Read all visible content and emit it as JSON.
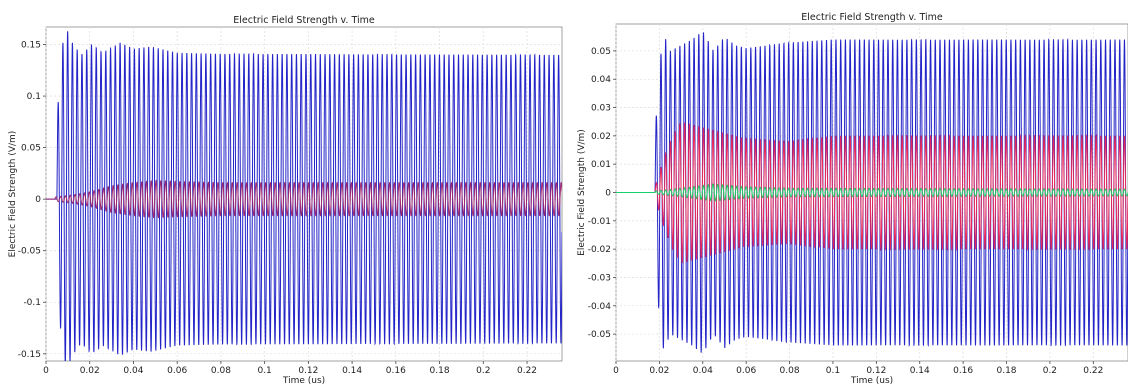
{
  "chart_data": [
    {
      "type": "line",
      "title": "Electric Field Strength v. Time",
      "xlabel": "Time (us)",
      "ylabel": "Electric Field Strength (V/m)",
      "xlim": [
        0,
        0.236
      ],
      "ylim": [
        -0.157,
        0.167
      ],
      "x_ticks": [
        0,
        0.02,
        0.04,
        0.06,
        0.08,
        0.1,
        0.12,
        0.14,
        0.16,
        0.18,
        0.2,
        0.22
      ],
      "x_tick_labels": [
        "0",
        "0.02",
        "0.04",
        "0.06",
        "0.08",
        "0.1",
        "0.12",
        "0.14",
        "0.16",
        "0.18",
        "0.2",
        "0.22"
      ],
      "y_ticks": [
        -0.15,
        -0.1,
        -0.05,
        0,
        0.05,
        0.1,
        0.15
      ],
      "y_tick_labels": [
        "-0.15",
        "-0.1",
        "-0.05",
        "0",
        "0.05",
        "0.1",
        "0.15"
      ],
      "grid": true,
      "legend": "none",
      "series": [
        {
          "color": "#2424c8",
          "onset": 0.005,
          "oscillation_period": 0.00218,
          "envelope": [
            [
              0.005,
              0.078
            ],
            [
              0.0075,
              0.15
            ],
            [
              0.0095,
              0.165
            ],
            [
              0.012,
              0.152
            ],
            [
              0.016,
              0.14
            ],
            [
              0.021,
              0.15
            ],
            [
              0.026,
              0.142
            ],
            [
              0.034,
              0.152
            ],
            [
              0.04,
              0.146
            ],
            [
              0.048,
              0.148
            ],
            [
              0.06,
              0.142
            ],
            [
              0.08,
              0.141
            ],
            [
              0.236,
              0.14
            ]
          ]
        },
        {
          "color": "#a0286e",
          "onset": 0.004,
          "oscillation_period": 0.00218,
          "envelope": [
            [
              0.004,
              0.002
            ],
            [
              0.012,
              0.004
            ],
            [
              0.02,
              0.007
            ],
            [
              0.03,
              0.013
            ],
            [
              0.04,
              0.016
            ],
            [
              0.05,
              0.018
            ],
            [
              0.06,
              0.017
            ],
            [
              0.08,
              0.016
            ],
            [
              0.236,
              0.016
            ]
          ]
        }
      ]
    },
    {
      "type": "line",
      "title": "Electric Field Strength v. Time",
      "xlabel": "Time (us)",
      "ylabel": "Electric Field Strength (V/m)",
      "xlim": [
        0,
        0.236
      ],
      "ylim": [
        -0.0595,
        0.0595
      ],
      "x_ticks": [
        0,
        0.02,
        0.04,
        0.06,
        0.08,
        0.1,
        0.12,
        0.14,
        0.16,
        0.18,
        0.2,
        0.22
      ],
      "x_tick_labels": [
        "0",
        "0.02",
        "0.04",
        "0.06",
        "0.08",
        "0.1",
        "0.12",
        "0.14",
        "0.16",
        "0.18",
        "0.2",
        "0.22"
      ],
      "y_ticks": [
        -0.05,
        -0.04,
        -0.03,
        -0.02,
        -0.01,
        0,
        0.01,
        0.02,
        0.03,
        0.04,
        0.05
      ],
      "y_tick_labels": [
        "-0.05",
        "-0.04",
        "-0.03",
        "-0.02",
        "-0.01",
        "0",
        "0.01",
        "0.02",
        "0.03",
        "0.04",
        "0.05"
      ],
      "grid": true,
      "legend": "none",
      "series": [
        {
          "color": "#2424c8",
          "onset": 0.018,
          "oscillation_period": 0.00218,
          "envelope": [
            [
              0.018,
              0.02
            ],
            [
              0.02,
              0.045
            ],
            [
              0.022,
              0.056
            ],
            [
              0.025,
              0.05
            ],
            [
              0.03,
              0.052
            ],
            [
              0.035,
              0.054
            ],
            [
              0.04,
              0.057
            ],
            [
              0.045,
              0.05
            ],
            [
              0.05,
              0.055
            ],
            [
              0.055,
              0.052
            ],
            [
              0.06,
              0.051
            ],
            [
              0.07,
              0.052
            ],
            [
              0.08,
              0.053
            ],
            [
              0.1,
              0.054
            ],
            [
              0.236,
              0.054
            ]
          ]
        },
        {
          "color": "#e8285a",
          "onset": 0.018,
          "oscillation_period": 0.00218,
          "envelope": [
            [
              0.018,
              0.002
            ],
            [
              0.022,
              0.012
            ],
            [
              0.026,
              0.02
            ],
            [
              0.03,
              0.025
            ],
            [
              0.035,
              0.024
            ],
            [
              0.045,
              0.022
            ],
            [
              0.06,
              0.019
            ],
            [
              0.08,
              0.018
            ],
            [
              0.1,
              0.02
            ],
            [
              0.236,
              0.02
            ]
          ]
        },
        {
          "color": "#18d06a",
          "onset": 0.018,
          "oscillation_period": 0.00218,
          "envelope": [
            [
              0.018,
              0.0005
            ],
            [
              0.03,
              0.0015
            ],
            [
              0.045,
              0.003
            ],
            [
              0.06,
              0.002
            ],
            [
              0.08,
              0.0015
            ],
            [
              0.236,
              0.0012
            ]
          ]
        }
      ]
    }
  ]
}
